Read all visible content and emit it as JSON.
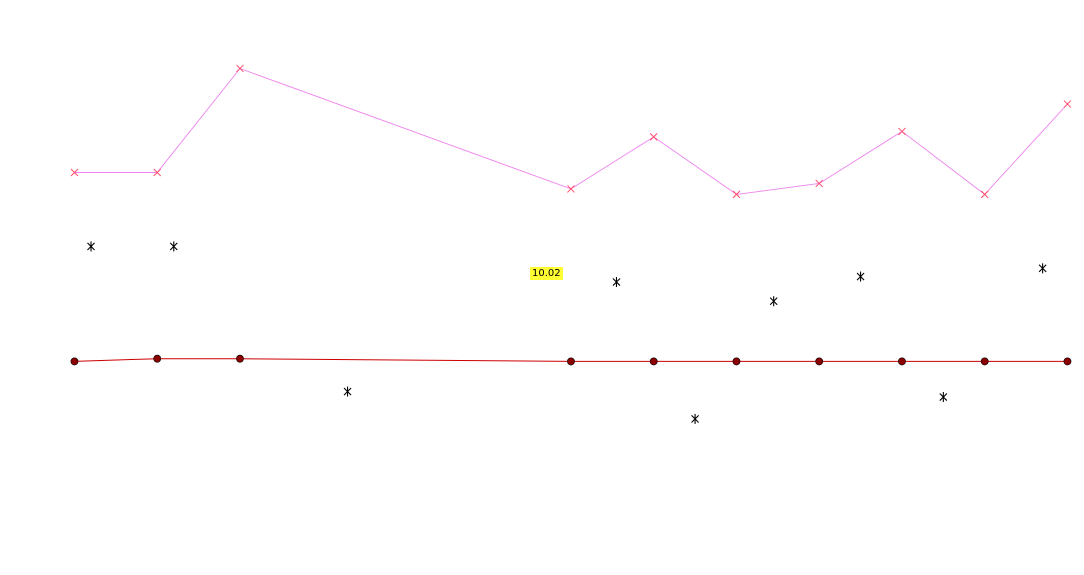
{
  "chart_data": {
    "type": "line",
    "x": [
      -1,
      0,
      1,
      5,
      6,
      7,
      8,
      9,
      10,
      11
    ],
    "series": [
      {
        "kind": "line",
        "color": "#ee82ee",
        "marker_color": "#ff4d6d",
        "marker": "x",
        "values": [
          0.47,
          0.47,
          0.85,
          0.41,
          0.6,
          0.39,
          0.43,
          0.62,
          0.39,
          0.72
        ]
      },
      {
        "kind": "line",
        "color": "#cc0000",
        "marker_color": "#8b0000",
        "marker": "circle",
        "values": [
          -0.22,
          -0.21,
          -0.21,
          -0.22,
          -0.22,
          -0.22,
          -0.22,
          -0.22,
          -0.22,
          -0.22
        ]
      },
      {
        "kind": "scatter",
        "color": "#000000",
        "marker": "asterisk",
        "x": [
          -0.8,
          0.2,
          2.3,
          5.55,
          6.5,
          7.45,
          8.5,
          9.5,
          10.7
        ],
        "values": [
          0.2,
          0.2,
          -0.33,
          0.07,
          -0.43,
          0.0,
          0.09,
          -0.35,
          0.12
        ]
      }
    ],
    "annotation": {
      "text": "10.02",
      "color": "#ffff33"
    },
    "title": "",
    "xlabel": "",
    "ylabel": "",
    "xlim": [
      -1.9,
      11.2
    ],
    "ylim": [
      -1.0,
      1.1
    ],
    "grid": false
  }
}
